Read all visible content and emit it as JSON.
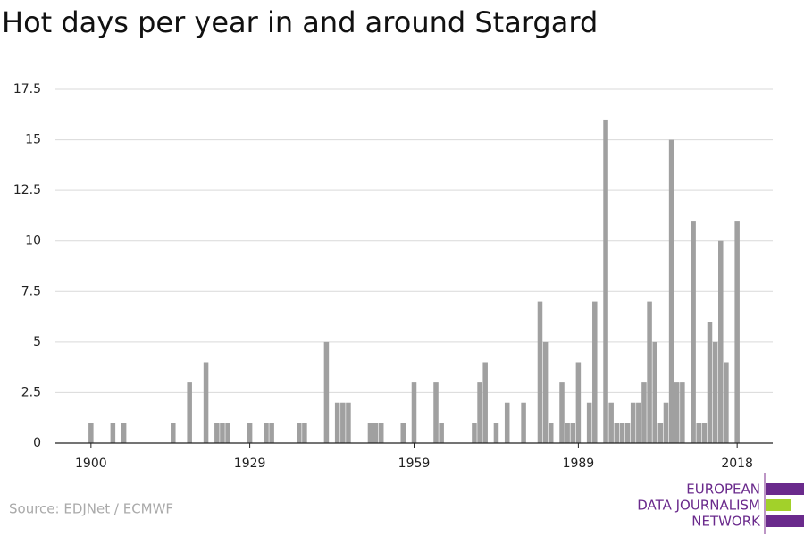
{
  "chart_data": {
    "type": "bar",
    "title": "Hot days per year in and around Stargard",
    "source": "Source: EDJNet / ECMWF",
    "logo": [
      "EUROPEAN",
      "DATA JOURNALISM",
      "NETWORK"
    ],
    "x": [
      1900,
      1901,
      1902,
      1903,
      1904,
      1905,
      1906,
      1907,
      1908,
      1909,
      1910,
      1911,
      1912,
      1913,
      1914,
      1915,
      1916,
      1917,
      1918,
      1919,
      1920,
      1921,
      1922,
      1923,
      1924,
      1925,
      1926,
      1927,
      1928,
      1929,
      1930,
      1931,
      1932,
      1933,
      1934,
      1935,
      1936,
      1937,
      1938,
      1939,
      1940,
      1941,
      1942,
      1943,
      1944,
      1945,
      1946,
      1947,
      1948,
      1949,
      1950,
      1951,
      1952,
      1953,
      1954,
      1955,
      1956,
      1957,
      1958,
      1959,
      1960,
      1961,
      1962,
      1963,
      1964,
      1965,
      1966,
      1967,
      1968,
      1969,
      1970,
      1971,
      1972,
      1973,
      1974,
      1975,
      1976,
      1977,
      1978,
      1979,
      1980,
      1981,
      1982,
      1983,
      1984,
      1985,
      1986,
      1987,
      1988,
      1989,
      1990,
      1991,
      1992,
      1993,
      1994,
      1995,
      1996,
      1997,
      1998,
      1999,
      2000,
      2001,
      2002,
      2003,
      2004,
      2005,
      2006,
      2007,
      2008,
      2009,
      2010,
      2011,
      2012,
      2013,
      2014,
      2015,
      2016,
      2017,
      2018
    ],
    "values": [
      1,
      0,
      0,
      0,
      1,
      0,
      1,
      0,
      0,
      0,
      0,
      0,
      0,
      0,
      0,
      1,
      0,
      0,
      3,
      0,
      0,
      4,
      0,
      1,
      1,
      1,
      0,
      0,
      0,
      1,
      0,
      0,
      1,
      1,
      0,
      0,
      0,
      0,
      1,
      1,
      0,
      0,
      0,
      5,
      0,
      2,
      2,
      2,
      0,
      0,
      0,
      1,
      1,
      1,
      0,
      0,
      0,
      1,
      0,
      3,
      0,
      0,
      0,
      3,
      1,
      0,
      0,
      0,
      0,
      0,
      1,
      3,
      4,
      0,
      1,
      0,
      2,
      0,
      0,
      2,
      0,
      0,
      7,
      5,
      1,
      0,
      3,
      1,
      1,
      4,
      0,
      2,
      7,
      0,
      16,
      2,
      1,
      1,
      1,
      2,
      2,
      3,
      7,
      5,
      1,
      2,
      15,
      3,
      3,
      0,
      11,
      1,
      1,
      6,
      5,
      10,
      4,
      0,
      11
    ],
    "color": "#a0a0a0",
    "xlim": [
      1893.5,
      2024.5
    ],
    "xticks": [
      1900,
      1929,
      1959,
      1989,
      2018
    ],
    "ylim": [
      0,
      17.5
    ],
    "yticks": [
      0,
      2.5,
      5,
      7.5,
      10,
      12.5,
      15,
      17.5
    ],
    "grid": true
  }
}
